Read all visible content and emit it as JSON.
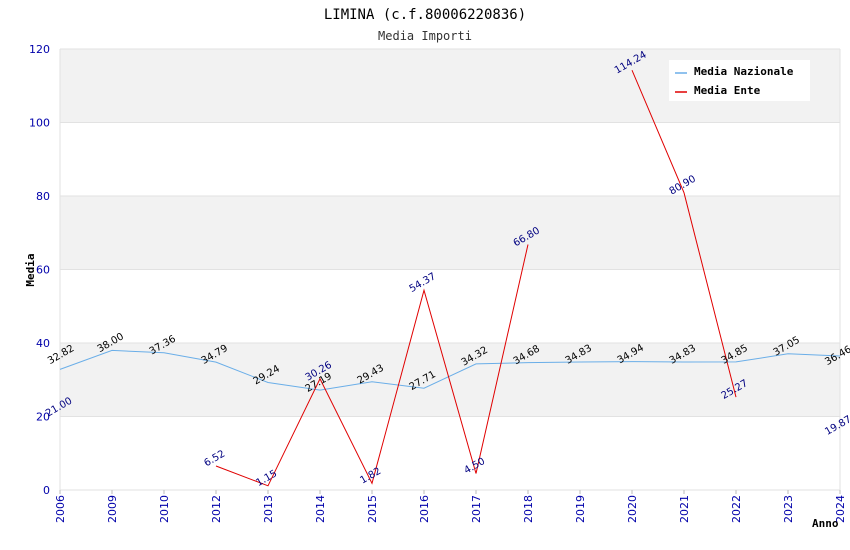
{
  "title": "LIMINA (c.f.80006220836)",
  "subtitle": "Media Importi",
  "chart_data": {
    "type": "line",
    "ylabel": "Media",
    "xlabel": "Anno",
    "ylim": [
      0,
      120
    ],
    "yticks": [
      0,
      20,
      40,
      60,
      80,
      100,
      120
    ],
    "grid": "horizontal bands",
    "legend_position": "top-right",
    "categories": [
      "2006",
      "2009",
      "2010",
      "2012",
      "2013",
      "2014",
      "2015",
      "2016",
      "2017",
      "2018",
      "2019",
      "2020",
      "2021",
      "2022",
      "2023",
      "2024"
    ],
    "series": [
      {
        "name": "Media Nazionale",
        "color": "#6aaee8",
        "values": [
          32.82,
          38.0,
          37.36,
          34.79,
          29.24,
          27.19,
          29.43,
          27.71,
          34.32,
          34.68,
          34.83,
          34.94,
          34.83,
          34.85,
          37.05,
          36.46
        ],
        "labels": [
          "32.82",
          "38.00",
          "37.36",
          "34.79",
          "29.24",
          "27.19",
          "29.43",
          "27.71",
          "34.32",
          "34.68",
          "34.83",
          "34.94",
          "34.83",
          "34.85",
          "37.05",
          "36.46"
        ]
      },
      {
        "name": "Media Ente",
        "color": "#e00000",
        "values": [
          null,
          null,
          null,
          6.52,
          1.15,
          30.26,
          1.82,
          54.37,
          4.5,
          66.8,
          null,
          114.24,
          80.9,
          25.27,
          null,
          null
        ],
        "labels": [
          null,
          null,
          null,
          "6.52",
          "1.15",
          "30.26",
          "1.82",
          "54.37",
          "4.50",
          "66.80",
          null,
          "114.24",
          "80.90",
          "25.27",
          null,
          null
        ]
      }
    ],
    "extra_labels": [
      {
        "category": "2006",
        "value": 21.0,
        "text": "21.00"
      },
      {
        "category": "2024",
        "value": 19.87,
        "text": "19.87"
      }
    ]
  }
}
